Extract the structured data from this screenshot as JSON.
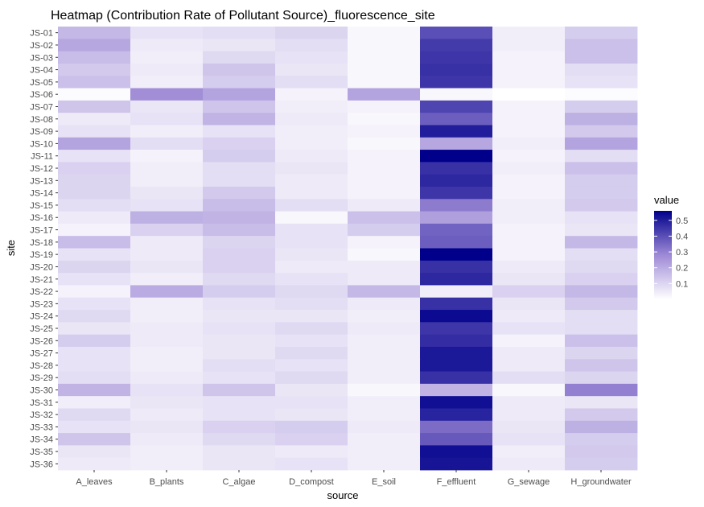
{
  "chart_data": {
    "type": "heatmap",
    "title": "Heatmap (Contribution Rate of Pollutant Source)_fluorescence_site",
    "xlabel": "source",
    "ylabel": "site",
    "x_categories": [
      "A_leaves",
      "B_plants",
      "C_algae",
      "D_compost",
      "E_soil",
      "F_effluent",
      "G_sewage",
      "H_groundwater"
    ],
    "y_categories": [
      "JS-01",
      "JS-02",
      "JS-03",
      "JS-04",
      "JS-05",
      "JS-06",
      "JS-07",
      "JS-08",
      "JS-09",
      "JS-10",
      "JS-11",
      "JS-12",
      "JS-13",
      "JS-14",
      "JS-15",
      "JS-16",
      "JS-17",
      "JS-18",
      "JS-19",
      "JS-20",
      "JS-21",
      "JS-22",
      "JS-23",
      "JS-24",
      "JS-25",
      "JS-26",
      "JS-27",
      "JS-28",
      "JS-29",
      "JS-30",
      "JS-31",
      "JS-32",
      "JS-33",
      "JS-34",
      "JS-35",
      "JS-36"
    ],
    "values": [
      [
        0.17,
        0.07,
        0.08,
        0.1,
        0.02,
        0.4,
        0.04,
        0.12
      ],
      [
        0.21,
        0.05,
        0.06,
        0.08,
        0.02,
        0.44,
        0.04,
        0.15
      ],
      [
        0.16,
        0.04,
        0.09,
        0.07,
        0.02,
        0.45,
        0.03,
        0.15
      ],
      [
        0.13,
        0.05,
        0.14,
        0.06,
        0.02,
        0.46,
        0.03,
        0.08
      ],
      [
        0.15,
        0.04,
        0.12,
        0.08,
        0.02,
        0.45,
        0.03,
        0.07
      ],
      [
        0.01,
        0.27,
        0.22,
        0.03,
        0.22,
        0.02,
        0.0,
        0.01
      ],
      [
        0.14,
        0.06,
        0.14,
        0.04,
        0.03,
        0.42,
        0.03,
        0.12
      ],
      [
        0.05,
        0.07,
        0.18,
        0.05,
        0.02,
        0.37,
        0.03,
        0.19
      ],
      [
        0.07,
        0.04,
        0.07,
        0.04,
        0.03,
        0.5,
        0.03,
        0.13
      ],
      [
        0.22,
        0.08,
        0.11,
        0.04,
        0.02,
        0.21,
        0.04,
        0.22
      ],
      [
        0.07,
        0.03,
        0.12,
        0.05,
        0.03,
        0.56,
        0.03,
        0.08
      ],
      [
        0.11,
        0.04,
        0.08,
        0.06,
        0.03,
        0.46,
        0.04,
        0.15
      ],
      [
        0.1,
        0.04,
        0.08,
        0.05,
        0.03,
        0.48,
        0.03,
        0.12
      ],
      [
        0.1,
        0.06,
        0.13,
        0.05,
        0.03,
        0.45,
        0.03,
        0.12
      ],
      [
        0.08,
        0.07,
        0.16,
        0.08,
        0.05,
        0.31,
        0.04,
        0.13
      ],
      [
        0.05,
        0.19,
        0.18,
        0.02,
        0.15,
        0.23,
        0.04,
        0.07
      ],
      [
        0.03,
        0.11,
        0.16,
        0.07,
        0.12,
        0.36,
        0.03,
        0.06
      ],
      [
        0.16,
        0.05,
        0.1,
        0.07,
        0.03,
        0.37,
        0.03,
        0.17
      ],
      [
        0.07,
        0.05,
        0.11,
        0.06,
        0.02,
        0.56,
        0.03,
        0.08
      ],
      [
        0.1,
        0.06,
        0.11,
        0.05,
        0.05,
        0.46,
        0.05,
        0.09
      ],
      [
        0.07,
        0.04,
        0.09,
        0.07,
        0.05,
        0.48,
        0.06,
        0.11
      ],
      [
        0.03,
        0.2,
        0.12,
        0.09,
        0.17,
        0.04,
        0.11,
        0.17
      ],
      [
        0.07,
        0.04,
        0.07,
        0.08,
        0.05,
        0.46,
        0.06,
        0.13
      ],
      [
        0.09,
        0.04,
        0.06,
        0.06,
        0.04,
        0.54,
        0.05,
        0.08
      ],
      [
        0.06,
        0.05,
        0.07,
        0.09,
        0.05,
        0.45,
        0.07,
        0.08
      ],
      [
        0.12,
        0.05,
        0.06,
        0.07,
        0.04,
        0.47,
        0.03,
        0.15
      ],
      [
        0.07,
        0.04,
        0.06,
        0.09,
        0.04,
        0.51,
        0.05,
        0.1
      ],
      [
        0.07,
        0.04,
        0.08,
        0.07,
        0.04,
        0.51,
        0.05,
        0.14
      ],
      [
        0.08,
        0.05,
        0.07,
        0.09,
        0.04,
        0.46,
        0.08,
        0.1
      ],
      [
        0.18,
        0.07,
        0.14,
        0.06,
        0.02,
        0.18,
        0.02,
        0.3
      ],
      [
        0.04,
        0.06,
        0.07,
        0.07,
        0.04,
        0.53,
        0.05,
        0.06
      ],
      [
        0.09,
        0.05,
        0.07,
        0.06,
        0.04,
        0.49,
        0.05,
        0.13
      ],
      [
        0.07,
        0.06,
        0.11,
        0.12,
        0.05,
        0.34,
        0.06,
        0.19
      ],
      [
        0.14,
        0.05,
        0.09,
        0.11,
        0.04,
        0.38,
        0.07,
        0.12
      ],
      [
        0.06,
        0.04,
        0.06,
        0.05,
        0.04,
        0.53,
        0.04,
        0.13
      ],
      [
        0.05,
        0.04,
        0.06,
        0.07,
        0.04,
        0.52,
        0.05,
        0.12
      ]
    ],
    "color_scale": {
      "low": "#ffffff",
      "mid": "#9e8ad6",
      "high": "#00008b",
      "vmin": 0.0,
      "vmax": 0.56
    },
    "legend": {
      "title": "value",
      "ticks": [
        0.1,
        0.2,
        0.3,
        0.4,
        0.5
      ],
      "tick_labels": [
        "0.1",
        "0.2",
        "0.3",
        "0.4",
        "0.5"
      ],
      "placement": "right"
    },
    "panel_background": "#ebebeb"
  }
}
